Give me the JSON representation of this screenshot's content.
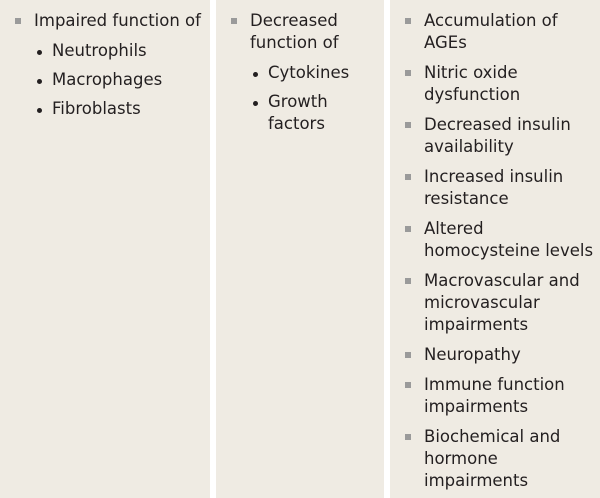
{
  "columns": [
    {
      "items": [
        {
          "text": "Impaired function of",
          "sub": [
            "Neutrophils",
            "Macrophages",
            "Fibroblasts"
          ]
        }
      ]
    },
    {
      "items": [
        {
          "text": "Decreased function of",
          "sub": [
            "Cytokines",
            "Growth factors"
          ]
        }
      ]
    },
    {
      "items": [
        {
          "text": "Accumulation of AGEs"
        },
        {
          "text": "Nitric oxide dysfunction"
        },
        {
          "text": "Decreased insulin availability"
        },
        {
          "text": "Increased insulin resistance"
        },
        {
          "text": "Altered homocysteine levels"
        },
        {
          "text": "Macrovascular and microvascular impairments"
        },
        {
          "text": "Neuropathy"
        },
        {
          "text": "Immune function impairments"
        },
        {
          "text": "Biochemical and hormone impairments"
        }
      ]
    }
  ],
  "colors": {
    "background": "#efebe3",
    "bullet": "#9a9a9a",
    "text": "#231f20"
  }
}
